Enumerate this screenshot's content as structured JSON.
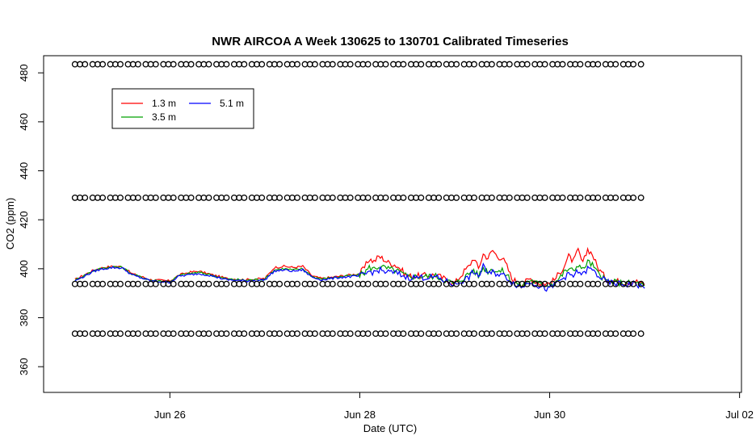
{
  "chart_data": {
    "type": "line",
    "title": "NWR AIRCOA A  Week 130625 to 130701  Calibrated Timeseries",
    "xlabel": "Date (UTC)",
    "ylabel": "CO2 (ppm)",
    "x_range_days": [
      24.67,
      32.02
    ],
    "xlim_dates": [
      "2013-06-24 16:00",
      "2013-07-02 00:30"
    ],
    "ylim": [
      349.5,
      487.0
    ],
    "x_ticks": [
      {
        "day": 26,
        "label": "Jun 26"
      },
      {
        "day": 28,
        "label": "Jun 28"
      },
      {
        "day": 30,
        "label": "Jun 30"
      },
      {
        "day": 32,
        "label": "Jul 02"
      }
    ],
    "y_ticks": [
      {
        "value": 360,
        "label": "360"
      },
      {
        "value": 380,
        "label": "380"
      },
      {
        "value": 400,
        "label": "400"
      },
      {
        "value": 420,
        "label": "420"
      },
      {
        "value": 440,
        "label": "440"
      },
      {
        "value": 460,
        "label": "460"
      },
      {
        "value": 480,
        "label": "480"
      }
    ],
    "grid": false,
    "legend": {
      "position": "top-left",
      "entries": [
        {
          "name": "1.3 m",
          "color": "#ff0000"
        },
        {
          "name": "3.5 m",
          "color": "#00a000"
        },
        {
          "name": "5.1 m",
          "color": "#0000ff"
        }
      ]
    },
    "reference_gases": {
      "marker": "open-circle",
      "x_start_day": 25.0,
      "x_end_day": 31.0,
      "levels_ppm": [
        483.5,
        429.0,
        393.8,
        373.5
      ]
    },
    "series": [
      {
        "name": "1.3 m",
        "color": "#ff0000",
        "x": [
          25.0,
          25.1,
          25.2,
          25.3,
          25.4,
          25.5,
          25.6,
          25.8,
          26.0,
          26.1,
          26.2,
          26.3,
          26.4,
          26.5,
          26.6,
          26.8,
          27.0,
          27.1,
          27.2,
          27.3,
          27.4,
          27.5,
          27.6,
          27.8,
          28.0,
          28.05,
          28.1,
          28.15,
          28.2,
          28.25,
          28.3,
          28.35,
          28.4,
          28.5,
          28.6,
          28.8,
          29.0,
          29.1,
          29.15,
          29.2,
          29.25,
          29.3,
          29.35,
          29.4,
          29.45,
          29.5,
          29.55,
          29.6,
          29.7,
          29.8,
          29.9,
          30.0,
          30.05,
          30.1,
          30.15,
          30.2,
          30.25,
          30.3,
          30.35,
          30.4,
          30.45,
          30.5,
          30.6,
          30.7,
          30.8,
          30.9,
          31.0
        ],
        "values": [
          395.5,
          397.5,
          399.5,
          400.5,
          401.0,
          400.8,
          398.0,
          395.5,
          395.0,
          397.5,
          398.5,
          399.0,
          398.0,
          397.0,
          396.0,
          395.5,
          396.0,
          400.5,
          401.0,
          400.5,
          401.0,
          397.0,
          396.0,
          397.0,
          398.0,
          400.5,
          404.0,
          403.0,
          405.0,
          404.0,
          402.5,
          402.0,
          401.0,
          397.0,
          397.0,
          397.5,
          394.0,
          399.0,
          401.0,
          404.5,
          400.0,
          406.0,
          404.5,
          407.5,
          405.0,
          404.5,
          401.0,
          396.0,
          393.5,
          396.0,
          394.0,
          394.0,
          395.5,
          398.0,
          401.0,
          405.0,
          403.0,
          407.5,
          402.0,
          408.0,
          406.0,
          401.0,
          395.5,
          395.0,
          394.5,
          395.0,
          393.5
        ]
      },
      {
        "name": "3.5 m",
        "color": "#00a000",
        "x": [
          25.0,
          25.1,
          25.2,
          25.3,
          25.4,
          25.5,
          25.6,
          25.8,
          26.0,
          26.1,
          26.2,
          26.3,
          26.4,
          26.5,
          26.6,
          26.8,
          27.0,
          27.1,
          27.2,
          27.3,
          27.4,
          27.5,
          27.6,
          27.8,
          28.0,
          28.05,
          28.1,
          28.15,
          28.2,
          28.25,
          28.3,
          28.35,
          28.4,
          28.5,
          28.6,
          28.8,
          29.0,
          29.1,
          29.15,
          29.2,
          29.25,
          29.3,
          29.35,
          29.4,
          29.45,
          29.5,
          29.55,
          29.6,
          29.7,
          29.8,
          29.9,
          30.0,
          30.05,
          30.1,
          30.15,
          30.2,
          30.25,
          30.3,
          30.35,
          30.4,
          30.45,
          30.5,
          30.6,
          30.7,
          30.8,
          30.9,
          31.0
        ],
        "values": [
          395.3,
          397.3,
          399.3,
          400.3,
          400.8,
          400.6,
          397.8,
          395.3,
          394.8,
          397.3,
          398.0,
          398.5,
          397.8,
          396.8,
          395.8,
          395.3,
          395.8,
          399.5,
          400.0,
          399.5,
          400.0,
          396.8,
          395.8,
          396.8,
          397.5,
          398.5,
          400.5,
          400.0,
          401.0,
          400.5,
          400.0,
          399.5,
          399.0,
          396.8,
          396.8,
          397.0,
          393.8,
          396.5,
          398.0,
          399.5,
          397.0,
          400.5,
          399.0,
          400.0,
          399.0,
          399.0,
          397.5,
          395.0,
          393.0,
          395.5,
          393.5,
          393.5,
          394.5,
          396.0,
          398.5,
          400.0,
          399.0,
          402.0,
          399.5,
          403.0,
          401.5,
          398.5,
          394.8,
          394.5,
          394.0,
          394.5,
          393.0
        ]
      },
      {
        "name": "5.1 m",
        "color": "#0000ff",
        "x": [
          25.0,
          25.1,
          25.2,
          25.3,
          25.4,
          25.5,
          25.6,
          25.8,
          26.0,
          26.1,
          26.2,
          26.3,
          26.4,
          26.5,
          26.6,
          26.8,
          27.0,
          27.1,
          27.2,
          27.3,
          27.4,
          27.5,
          27.6,
          27.8,
          28.0,
          28.05,
          28.1,
          28.15,
          28.2,
          28.25,
          28.3,
          28.35,
          28.4,
          28.5,
          28.6,
          28.8,
          29.0,
          29.1,
          29.15,
          29.2,
          29.25,
          29.3,
          29.35,
          29.4,
          29.45,
          29.5,
          29.55,
          29.6,
          29.7,
          29.8,
          29.9,
          30.0,
          30.05,
          30.1,
          30.15,
          30.2,
          30.25,
          30.3,
          30.35,
          30.4,
          30.45,
          30.5,
          30.6,
          30.7,
          30.8,
          30.9,
          31.0
        ],
        "values": [
          395.0,
          397.0,
          399.0,
          400.0,
          400.5,
          400.3,
          397.5,
          395.0,
          394.5,
          397.0,
          397.5,
          398.0,
          397.5,
          396.5,
          395.5,
          395.0,
          395.5,
          399.0,
          399.5,
          399.0,
          399.5,
          396.5,
          395.5,
          396.5,
          397.0,
          397.5,
          399.0,
          398.5,
          399.5,
          399.0,
          398.5,
          398.5,
          398.0,
          396.5,
          396.5,
          396.5,
          393.5,
          395.5,
          396.5,
          399.0,
          396.0,
          402.0,
          397.5,
          398.5,
          398.0,
          397.5,
          396.5,
          394.5,
          392.5,
          395.0,
          392.5,
          391.5,
          393.5,
          395.0,
          396.5,
          397.5,
          397.0,
          399.0,
          397.5,
          400.0,
          399.5,
          397.5,
          394.5,
          394.0,
          393.5,
          394.0,
          392.0
        ]
      }
    ]
  }
}
